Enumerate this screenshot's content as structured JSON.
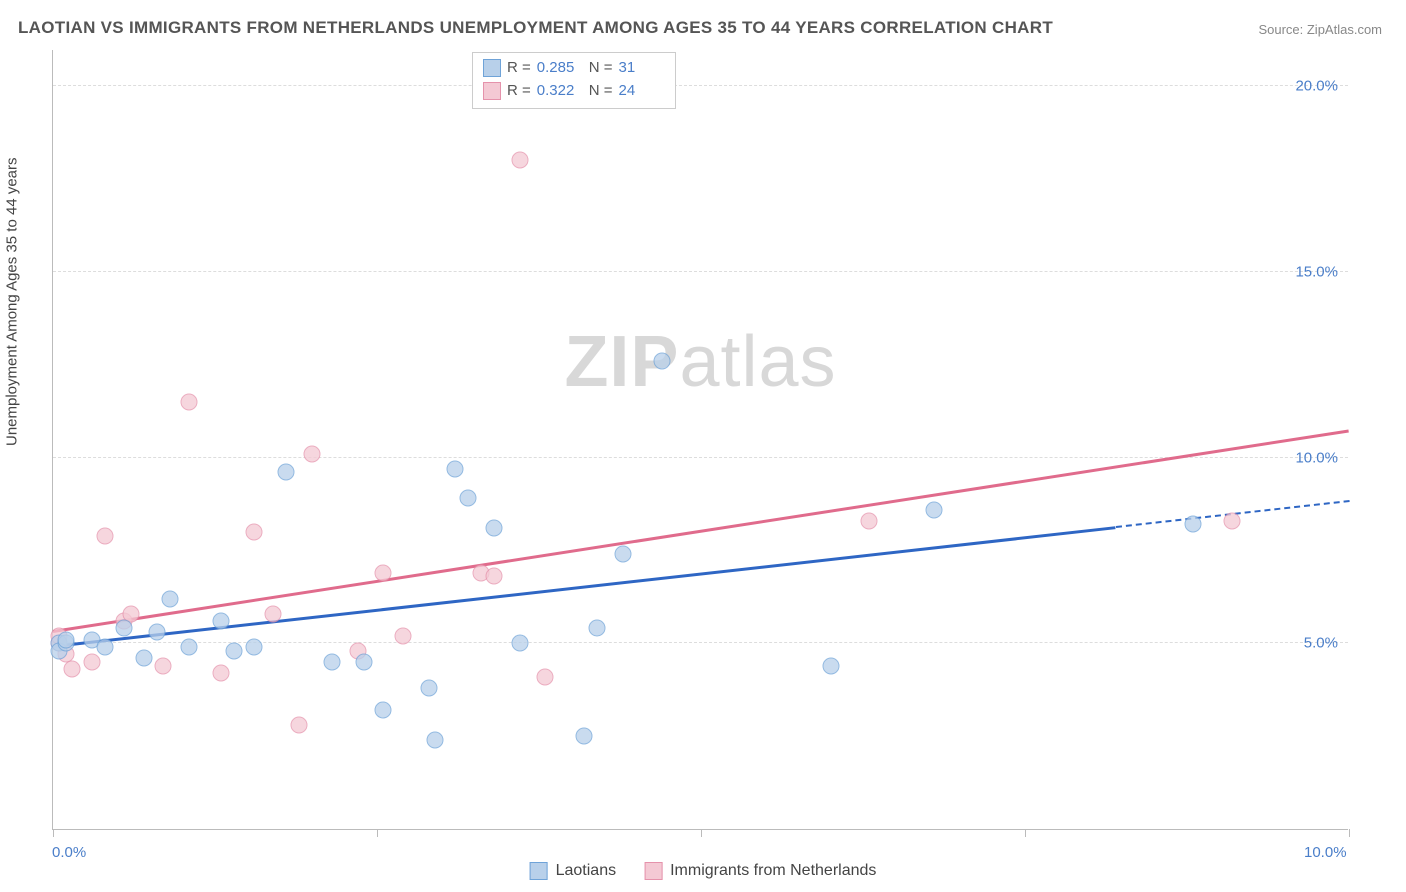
{
  "title": "LAOTIAN VS IMMIGRANTS FROM NETHERLANDS UNEMPLOYMENT AMONG AGES 35 TO 44 YEARS CORRELATION CHART",
  "source": "Source: ZipAtlas.com",
  "axis": {
    "y_title": "Unemployment Among Ages 35 to 44 years",
    "x_min": 0.0,
    "x_max": 10.0,
    "y_min": 0.0,
    "y_max": 21.0,
    "y_ticks": [
      5.0,
      10.0,
      15.0,
      20.0
    ],
    "y_tick_labels": [
      "5.0%",
      "10.0%",
      "15.0%",
      "20.0%"
    ],
    "x_tick_positions": [
      0,
      2.5,
      5.0,
      7.5,
      10.0
    ],
    "x_label_left": "0.0%",
    "x_label_right": "10.0%"
  },
  "colors": {
    "series_a_fill": "#b8d0ea",
    "series_a_stroke": "#6fa3d8",
    "series_a_line": "#2e66c4",
    "series_b_fill": "#f4c9d4",
    "series_b_stroke": "#e592ab",
    "series_b_line": "#e06b8c",
    "grid": "#dddddd",
    "axis": "#bbbbbb",
    "text": "#555555",
    "value": "#4a7ec9",
    "watermark": "#d8d8d8",
    "background": "#ffffff"
  },
  "watermark": {
    "prefix": "ZIP",
    "suffix": "atlas"
  },
  "legend_top": {
    "rows": [
      {
        "series": "a",
        "r_label": "R =",
        "r_value": "0.285",
        "n_label": "N =",
        "n_value": "31"
      },
      {
        "series": "b",
        "r_label": "R =",
        "r_value": "0.322",
        "n_label": "N =",
        "n_value": "24"
      }
    ]
  },
  "legend_bottom": {
    "items": [
      {
        "series": "a",
        "label": "Laotians"
      },
      {
        "series": "b",
        "label": "Immigrants from Netherlands"
      }
    ]
  },
  "trend_lines": {
    "a": {
      "x1": 0.0,
      "y1": 4.9,
      "x2": 8.2,
      "y2": 8.1,
      "dash_to_x": 10.0,
      "dash_to_y": 8.8
    },
    "b": {
      "x1": 0.0,
      "y1": 5.3,
      "x2": 10.0,
      "y2": 10.7
    }
  },
  "series_a_points": [
    [
      0.05,
      5.0
    ],
    [
      0.05,
      4.8
    ],
    [
      0.1,
      5.0
    ],
    [
      0.1,
      5.1
    ],
    [
      0.3,
      5.1
    ],
    [
      0.4,
      4.9
    ],
    [
      0.55,
      5.4
    ],
    [
      0.7,
      4.6
    ],
    [
      0.8,
      5.3
    ],
    [
      0.9,
      6.2
    ],
    [
      1.05,
      4.9
    ],
    [
      1.3,
      5.6
    ],
    [
      1.4,
      4.8
    ],
    [
      1.55,
      4.9
    ],
    [
      1.8,
      9.6
    ],
    [
      2.15,
      4.5
    ],
    [
      2.4,
      4.5
    ],
    [
      2.55,
      3.2
    ],
    [
      2.9,
      3.8
    ],
    [
      2.95,
      2.4
    ],
    [
      3.1,
      9.7
    ],
    [
      3.2,
      8.9
    ],
    [
      3.4,
      8.1
    ],
    [
      4.1,
      2.5
    ],
    [
      4.2,
      5.4
    ],
    [
      4.4,
      7.4
    ],
    [
      4.7,
      12.6
    ],
    [
      6.0,
      4.4
    ],
    [
      6.8,
      8.6
    ],
    [
      8.8,
      8.2
    ],
    [
      3.6,
      5.0
    ]
  ],
  "series_b_points": [
    [
      0.05,
      5.0
    ],
    [
      0.05,
      5.2
    ],
    [
      0.1,
      4.7
    ],
    [
      0.15,
      4.3
    ],
    [
      0.3,
      4.5
    ],
    [
      0.4,
      7.9
    ],
    [
      0.55,
      5.6
    ],
    [
      0.6,
      5.8
    ],
    [
      0.85,
      4.4
    ],
    [
      1.05,
      11.5
    ],
    [
      1.3,
      4.2
    ],
    [
      1.55,
      8.0
    ],
    [
      1.7,
      5.8
    ],
    [
      1.9,
      2.8
    ],
    [
      2.0,
      10.1
    ],
    [
      2.35,
      4.8
    ],
    [
      2.55,
      6.9
    ],
    [
      2.7,
      5.2
    ],
    [
      3.3,
      6.9
    ],
    [
      3.4,
      6.8
    ],
    [
      3.6,
      18.0
    ],
    [
      3.8,
      4.1
    ],
    [
      6.3,
      8.3
    ],
    [
      9.1,
      8.3
    ]
  ]
}
